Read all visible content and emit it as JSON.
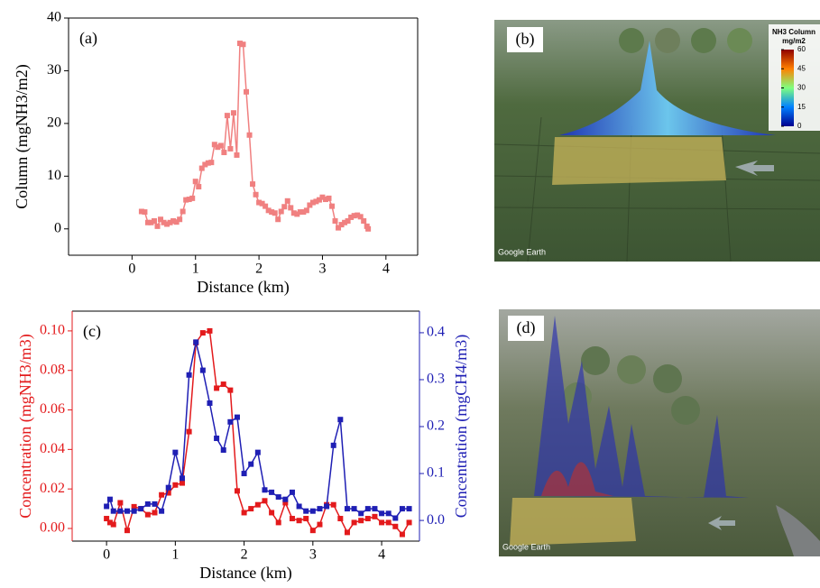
{
  "chart_data": [
    {
      "type": "line",
      "panel_label": "(a)",
      "xlabel": "Distance (km)",
      "ylabel": "Column (mgNH3/m2)",
      "xlim": [
        -1,
        4.5
      ],
      "xticks": [
        0,
        1,
        2,
        3,
        4
      ],
      "ylim": [
        -5,
        40
      ],
      "yticks": [
        0,
        10,
        20,
        30,
        40
      ],
      "series": [
        {
          "color": "#f08080",
          "x": [
            0.15,
            0.2,
            0.25,
            0.3,
            0.35,
            0.4,
            0.45,
            0.5,
            0.55,
            0.6,
            0.65,
            0.7,
            0.75,
            0.8,
            0.85,
            0.9,
            0.95,
            1.0,
            1.05,
            1.1,
            1.15,
            1.2,
            1.25,
            1.3,
            1.35,
            1.4,
            1.45,
            1.5,
            1.55,
            1.6,
            1.65,
            1.7,
            1.75,
            1.8,
            1.85,
            1.9,
            1.95,
            2.0,
            2.05,
            2.1,
            2.15,
            2.2,
            2.25,
            2.3,
            2.35,
            2.4,
            2.45,
            2.5,
            2.55,
            2.6,
            2.65,
            2.7,
            2.75,
            2.8,
            2.85,
            2.9,
            2.95,
            3.0,
            3.05,
            3.1,
            3.15,
            3.2,
            3.25,
            3.3,
            3.35,
            3.4,
            3.45,
            3.5,
            3.55,
            3.6,
            3.65,
            3.7,
            3.72
          ],
          "values": [
            3.3,
            3.2,
            1.2,
            1.2,
            1.5,
            0.5,
            1.8,
            1.2,
            0.9,
            1.2,
            1.5,
            1.3,
            1.8,
            3.3,
            5.5,
            5.6,
            5.8,
            9,
            8,
            11.5,
            12.2,
            12.5,
            12.6,
            16,
            15.5,
            15.8,
            14.5,
            21.5,
            15.2,
            22,
            14,
            35.2,
            35,
            26,
            17.8,
            8.5,
            6.5,
            5,
            4.8,
            4.3,
            3.5,
            3.2,
            3,
            1.8,
            3.3,
            4.2,
            5.3,
            4,
            3,
            2.8,
            3.2,
            3.2,
            3.5,
            4.5,
            5,
            5.2,
            5.5,
            6,
            5.6,
            5.8,
            4.3,
            1.5,
            0.2,
            0.8,
            1.2,
            1.5,
            2.2,
            2.5,
            2.6,
            2.3,
            1.5,
            0.5,
            0
          ]
        }
      ]
    },
    {
      "type": "line",
      "panel_label": "(c)",
      "xlabel": "Distance (km)",
      "ylabel": "Concentration (mgNH3/m3)",
      "y2label": "Concentration (mgCH4/m3)",
      "xlim": [
        -0.5,
        4.55
      ],
      "xticks": [
        0,
        1,
        2,
        3,
        4
      ],
      "ylim": [
        -0.0064,
        0.11
      ],
      "yticks": [
        {
          "value": 0,
          "label": "0.00"
        },
        {
          "value": 0.02,
          "label": "0.02"
        },
        {
          "value": 0.04,
          "label": "0.04"
        },
        {
          "value": 0.06,
          "label": "0.06"
        },
        {
          "value": 0.08,
          "label": "0.08"
        },
        {
          "value": 0.1,
          "label": "0.10"
        }
      ],
      "y2lim": [
        -0.044,
        0.446
      ],
      "y2ticks": [
        {
          "value": 0,
          "label": "0.0"
        },
        {
          "value": 0.1,
          "label": "0.1"
        },
        {
          "value": 0.2,
          "label": "0.2"
        },
        {
          "value": 0.3,
          "label": "0.3"
        },
        {
          "value": 0.4,
          "label": "0.4"
        }
      ],
      "series": [
        {
          "color": "#e31a1c",
          "x": [
            0,
            0.05,
            0.1,
            0.2,
            0.3,
            0.4,
            0.5,
            0.6,
            0.7,
            0.8,
            0.9,
            1.0,
            1.1,
            1.2,
            1.3,
            1.4,
            1.5,
            1.6,
            1.7,
            1.8,
            1.9,
            2.0,
            2.1,
            2.2,
            2.3,
            2.4,
            2.5,
            2.6,
            2.7,
            2.8,
            2.9,
            3.0,
            3.1,
            3.2,
            3.3,
            3.4,
            3.5,
            3.6,
            3.7,
            3.8,
            3.9,
            4.0,
            4.1,
            4.2,
            4.3,
            4.4
          ],
          "values": [
            0.005,
            0.003,
            0.002,
            0.013,
            -0.001,
            0.011,
            0.01,
            0.007,
            0.008,
            0.017,
            0.018,
            0.022,
            0.023,
            0.049,
            0.094,
            0.099,
            0.1,
            0.071,
            0.073,
            0.07,
            0.019,
            0.008,
            0.01,
            0.012,
            0.014,
            0.008,
            0.003,
            0.013,
            0.005,
            0.004,
            0.005,
            -0.001,
            0.002,
            0.012,
            0.012,
            0.005,
            -0.002,
            0.003,
            0.004,
            0.005,
            0.006,
            0.003,
            0.003,
            0.001,
            -0.003,
            0.003
          ]
        },
        {
          "color": "#1f1fb4",
          "axis": "y2",
          "x": [
            0,
            0.05,
            0.1,
            0.2,
            0.3,
            0.4,
            0.5,
            0.6,
            0.7,
            0.8,
            0.9,
            1.0,
            1.1,
            1.2,
            1.3,
            1.4,
            1.5,
            1.6,
            1.7,
            1.8,
            1.9,
            2.0,
            2.1,
            2.2,
            2.3,
            2.4,
            2.5,
            2.6,
            2.7,
            2.8,
            2.9,
            3.0,
            3.1,
            3.2,
            3.3,
            3.4,
            3.5,
            3.6,
            3.7,
            3.8,
            3.9,
            4.0,
            4.1,
            4.2,
            4.3,
            4.4
          ],
          "values": [
            0.03,
            0.045,
            0.02,
            0.02,
            0.02,
            0.02,
            0.025,
            0.035,
            0.035,
            0.02,
            0.07,
            0.145,
            0.09,
            0.31,
            0.38,
            0.32,
            0.25,
            0.175,
            0.15,
            0.21,
            0.22,
            0.1,
            0.12,
            0.145,
            0.065,
            0.06,
            0.05,
            0.045,
            0.06,
            0.03,
            0.02,
            0.02,
            0.025,
            0.03,
            0.16,
            0.215,
            0.025,
            0.025,
            0.015,
            0.025,
            0.025,
            0.015,
            0.015,
            0.005,
            0.025,
            0.025
          ]
        }
      ]
    }
  ],
  "images": [
    {
      "label": "(b)",
      "colorbar_title": "NH3 Column",
      "colorbar_unit": "mg/m2",
      "colorbar_ticks": [
        60,
        45,
        30,
        15,
        0
      ],
      "credit": "Google Earth"
    },
    {
      "label": "(d)",
      "credit": "Google Earth"
    }
  ]
}
